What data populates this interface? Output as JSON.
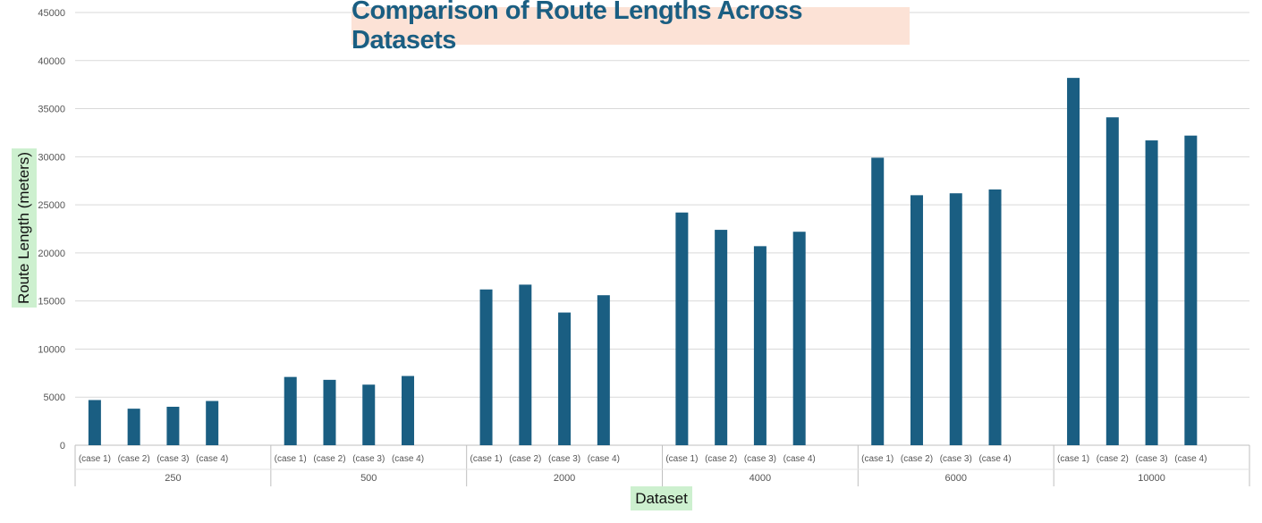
{
  "chart_data": {
    "type": "bar",
    "title": "Comparison of Route Lengths Across Datasets",
    "xlabel": "Dataset",
    "ylabel": "Route Length (meters)",
    "ylim": [
      0,
      45000
    ],
    "yticks": [
      0,
      5000,
      10000,
      15000,
      20000,
      25000,
      30000,
      35000,
      40000,
      45000
    ],
    "grid": true,
    "bar_color": "#1a5e82",
    "title_bg": "#fce2d6",
    "label_bg": "#cdf0cf",
    "groups": [
      {
        "name": "250",
        "cases": [
          "(case 1)",
          "(case 2)",
          "(case 3)",
          "(case 4)"
        ],
        "values": [
          4700,
          3800,
          4000,
          4600
        ]
      },
      {
        "name": "500",
        "cases": [
          "(case 1)",
          "(case 2)",
          "(case 3)",
          "(case 4)"
        ],
        "values": [
          7100,
          6800,
          6300,
          7200
        ]
      },
      {
        "name": "2000",
        "cases": [
          "(case 1)",
          "(case 2)",
          "(case 3)",
          "(case 4)"
        ],
        "values": [
          16200,
          16700,
          13800,
          15600
        ]
      },
      {
        "name": "4000",
        "cases": [
          "(case 1)",
          "(case 2)",
          "(case 3)",
          "(case 4)"
        ],
        "values": [
          24200,
          22400,
          20700,
          22200
        ]
      },
      {
        "name": "6000",
        "cases": [
          "(case 1)",
          "(case 2)",
          "(case 3)",
          "(case 4)"
        ],
        "values": [
          29900,
          26000,
          26200,
          26600
        ]
      },
      {
        "name": "10000",
        "cases": [
          "(case 1)",
          "(case 2)",
          "(case 3)",
          "(case 4)"
        ],
        "values": [
          38200,
          34100,
          31700,
          32200
        ]
      }
    ]
  }
}
